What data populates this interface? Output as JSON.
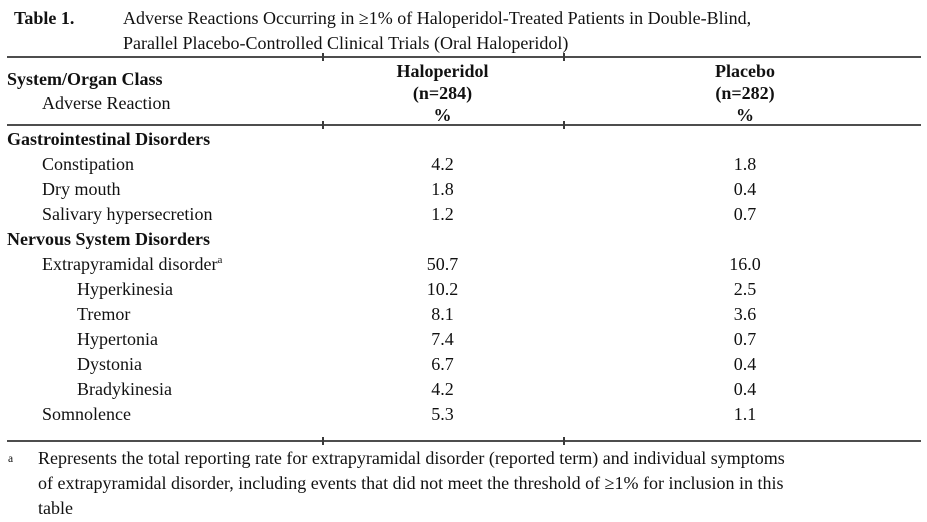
{
  "colors": {
    "text": "#111111",
    "rule": "#4d4d4d",
    "tick": "#3b3b3b",
    "background": "#ffffff"
  },
  "title": {
    "label": "Table 1.",
    "line1": "Adverse Reactions Occurring in ≥1% of Haloperidol-Treated Patients in Double-Blind,",
    "line2": "Parallel Placebo-Controlled Clinical Trials (Oral Haloperidol)"
  },
  "header": {
    "col1_line1": "System/Organ Class",
    "col1_line2": "Adverse Reaction",
    "haloperidol": {
      "name": "Haloperidol",
      "n": "(n=284)",
      "unit": "%"
    },
    "placebo": {
      "name": "Placebo",
      "n": "(n=282)",
      "unit": "%"
    }
  },
  "table": {
    "rows": [
      {
        "type": "section",
        "label": "Gastrointestinal Disorders"
      },
      {
        "type": "item",
        "indent": 1,
        "label": "Constipation",
        "haloperidol": "4.2",
        "placebo": "1.8"
      },
      {
        "type": "item",
        "indent": 1,
        "label": "Dry mouth",
        "haloperidol": "1.8",
        "placebo": "0.4"
      },
      {
        "type": "item",
        "indent": 1,
        "label": "Salivary hypersecretion",
        "haloperidol": "1.2",
        "placebo": "0.7"
      },
      {
        "type": "section",
        "label": "Nervous System Disorders"
      },
      {
        "type": "item",
        "indent": 1,
        "label": "Extrapyramidal disorder",
        "sup": "a",
        "haloperidol": "50.7",
        "placebo": "16.0"
      },
      {
        "type": "item",
        "indent": 2,
        "label": "Hyperkinesia",
        "haloperidol": "10.2",
        "placebo": "2.5"
      },
      {
        "type": "item",
        "indent": 2,
        "label": "Tremor",
        "haloperidol": "8.1",
        "placebo": "3.6"
      },
      {
        "type": "item",
        "indent": 2,
        "label": "Hypertonia",
        "haloperidol": "7.4",
        "placebo": "0.7"
      },
      {
        "type": "item",
        "indent": 2,
        "label": "Dystonia",
        "haloperidol": "6.7",
        "placebo": "0.4"
      },
      {
        "type": "item",
        "indent": 2,
        "label": "Bradykinesia",
        "haloperidol": "4.2",
        "placebo": "0.4"
      },
      {
        "type": "item",
        "indent": 1,
        "label": "Somnolence",
        "haloperidol": "5.3",
        "placebo": "1.1"
      }
    ]
  },
  "footnote": {
    "marker": "a",
    "lines": [
      "Represents the total reporting rate for extrapyramidal disorder (reported term) and individual symptoms",
      "of extrapyramidal disorder, including events that did not meet the threshold of ≥1% for inclusion in this",
      "table"
    ]
  }
}
